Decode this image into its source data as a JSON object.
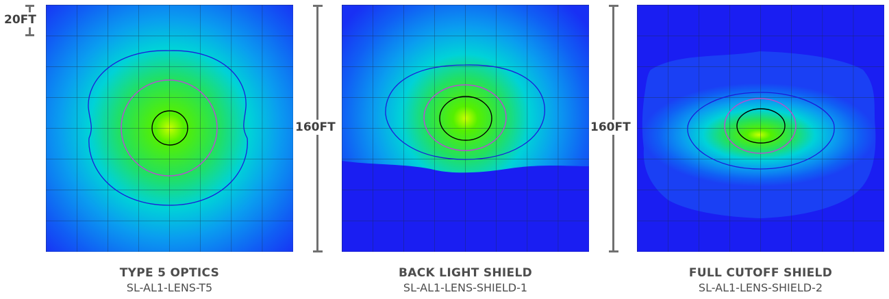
{
  "scale": {
    "small": "20FT",
    "large": "160FT"
  },
  "panels": [
    {
      "title": "TYPE 5 OPTICS",
      "model": "SL-AL1-LENS-T5"
    },
    {
      "title": "BACK LIGHT SHIELD",
      "model": "SL-AL1-LENS-SHIELD-1"
    },
    {
      "title": "FULL CUTOFF SHIELD",
      "model": "SL-AL1-LENS-SHIELD-2"
    }
  ],
  "colors": {
    "low": "#1a22f5",
    "mid": "#00d2f0",
    "high": "#33e81e",
    "peak": "#c8ff00",
    "contour_outer": "#1c1cd8",
    "contour_mid": "#b450d0",
    "contour_inner": "#000000",
    "grid": "#1a2a40"
  }
}
